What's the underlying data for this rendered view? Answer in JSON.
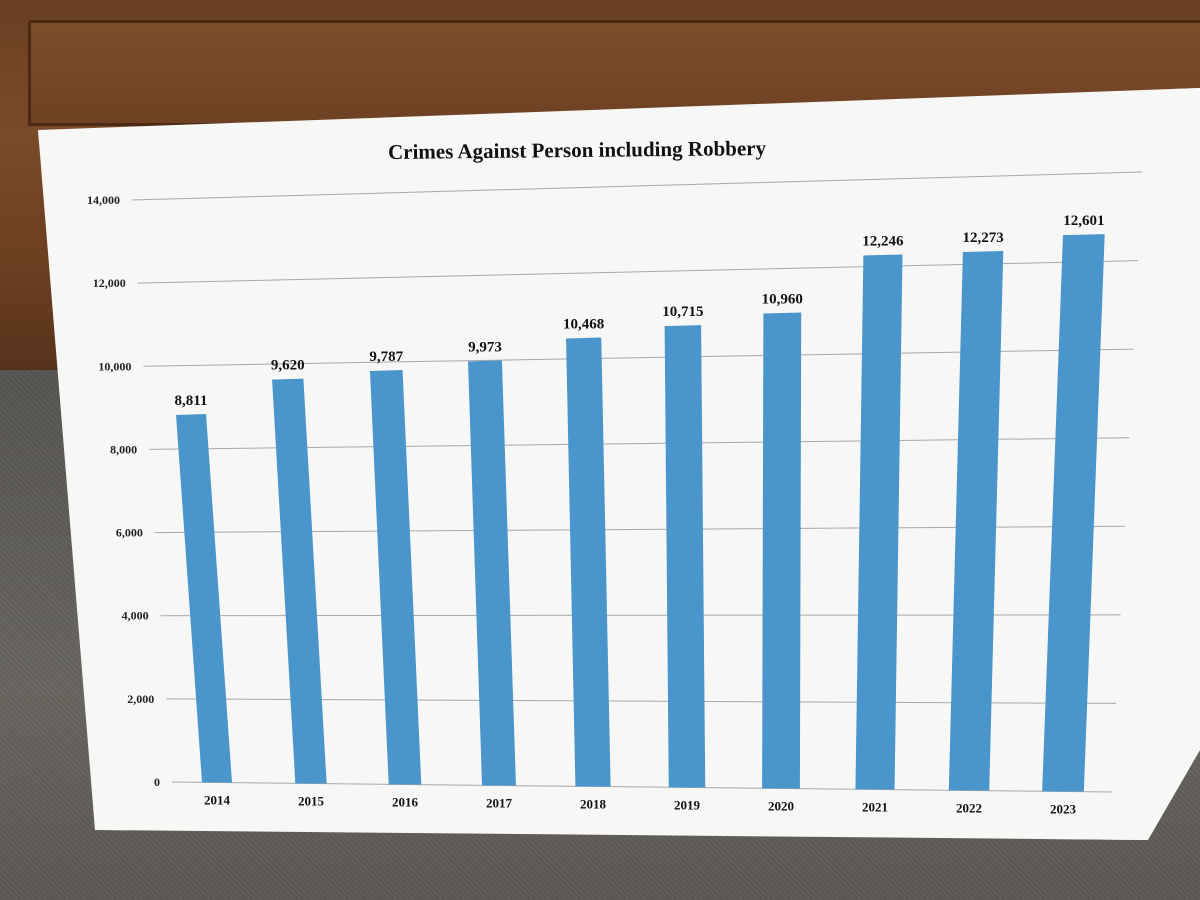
{
  "chart_data": {
    "type": "bar",
    "title": "Crimes Against Person including Robbery",
    "xlabel": "",
    "ylabel": "",
    "categories": [
      "2014",
      "2015",
      "2016",
      "2017",
      "2018",
      "2019",
      "2020",
      "2021",
      "2022",
      "2023"
    ],
    "values": [
      8811,
      9620,
      9787,
      9973,
      10468,
      10715,
      10960,
      12246,
      12273,
      12601
    ],
    "value_labels": [
      "8,811",
      "9,620",
      "9,787",
      "9,973",
      "10,468",
      "10,715",
      "10,960",
      "12,246",
      "12,273",
      "12,601"
    ],
    "ylim": [
      0,
      14000
    ],
    "yticks": [
      0,
      2000,
      4000,
      6000,
      8000,
      10000,
      12000,
      14000
    ],
    "ytick_labels": [
      "0",
      "2,000",
      "4,000",
      "6,000",
      "8,000",
      "10,000",
      "12,000",
      "14,000"
    ],
    "grid": true,
    "legend": "none",
    "bar_color": "#4a95cc"
  }
}
